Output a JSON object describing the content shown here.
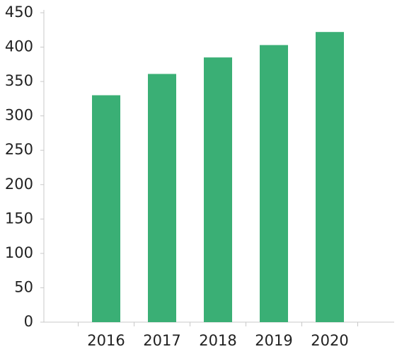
{
  "chart_data": {
    "type": "bar",
    "categories": [
      "2016",
      "2017",
      "2018",
      "2019",
      "2020"
    ],
    "values": [
      330,
      361,
      385,
      403,
      422
    ],
    "color": "#3aaf75",
    "ylim": [
      0,
      450
    ],
    "yticks": [
      0,
      50,
      100,
      150,
      200,
      250,
      300,
      350,
      400,
      450
    ],
    "grid": false
  }
}
